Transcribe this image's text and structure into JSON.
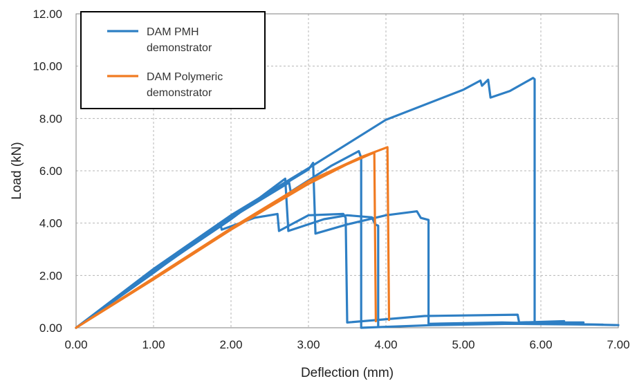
{
  "chart_data": {
    "type": "line",
    "title": "",
    "xlabel": "Deflection (mm)",
    "ylabel": "Load (kN)",
    "xlim": [
      0,
      7
    ],
    "ylim": [
      0,
      12
    ],
    "x_ticks": [
      "0.00",
      "1.00",
      "2.00",
      "3.00",
      "4.00",
      "5.00",
      "6.00",
      "7.00"
    ],
    "y_ticks": [
      "0.00",
      "2.00",
      "4.00",
      "6.00",
      "8.00",
      "10.00",
      "12.00"
    ],
    "grid": true,
    "legend_position": "top-left",
    "colors": {
      "pmh": "#2e7fc4",
      "polymeric": "#f07b22"
    },
    "legend": [
      {
        "lines": [
          "DAM PMH",
          "demonstrator"
        ],
        "color": "#2e7fc4"
      },
      {
        "lines": [
          "DAM Polymeric",
          "demonstrator"
        ],
        "color": "#f07b22"
      }
    ],
    "series": [
      {
        "group": "pmh",
        "color": "#2e7fc4",
        "points": [
          [
            0,
            0
          ],
          [
            1,
            2.25
          ],
          [
            2,
            4.3
          ],
          [
            3,
            6.1
          ],
          [
            4,
            7.95
          ],
          [
            5,
            9.1
          ],
          [
            5.22,
            9.45
          ],
          [
            5.24,
            9.25
          ],
          [
            5.32,
            9.48
          ],
          [
            5.35,
            8.8
          ],
          [
            5.6,
            9.05
          ],
          [
            5.9,
            9.55
          ],
          [
            5.92,
            9.5
          ],
          [
            5.92,
            0.2
          ],
          [
            6.55,
            0.2
          ]
        ]
      },
      {
        "group": "pmh",
        "color": "#2e7fc4",
        "points": [
          [
            0,
            0
          ],
          [
            1,
            2.2
          ],
          [
            2,
            4.25
          ],
          [
            3,
            6.05
          ],
          [
            3.06,
            6.3
          ],
          [
            3.09,
            3.6
          ],
          [
            3.5,
            3.95
          ],
          [
            4,
            4.3
          ],
          [
            4.4,
            4.45
          ],
          [
            4.45,
            4.2
          ],
          [
            4.55,
            4.12
          ],
          [
            4.55,
            0.15
          ],
          [
            5.5,
            0.2
          ],
          [
            7,
            0.1
          ]
        ]
      },
      {
        "group": "pmh",
        "color": "#2e7fc4",
        "points": [
          [
            0,
            0
          ],
          [
            1,
            2.15
          ],
          [
            2,
            4.15
          ],
          [
            2.7,
            5.7
          ],
          [
            2.74,
            3.7
          ],
          [
            3.2,
            4.15
          ],
          [
            3.5,
            4.3
          ],
          [
            3.82,
            4.22
          ],
          [
            3.86,
            3.95
          ],
          [
            3.9,
            3.9
          ],
          [
            3.9,
            0.05
          ]
        ]
      },
      {
        "group": "pmh",
        "color": "#2e7fc4",
        "points": [
          [
            0,
            0
          ],
          [
            1,
            2.1
          ],
          [
            1.86,
            4.0
          ],
          [
            1.88,
            3.75
          ],
          [
            2.3,
            4.2
          ],
          [
            2.6,
            4.35
          ],
          [
            2.62,
            3.7
          ],
          [
            3.0,
            4.3
          ],
          [
            3.45,
            4.35
          ],
          [
            3.48,
            4.2
          ],
          [
            3.5,
            0.2
          ],
          [
            4.5,
            0.45
          ],
          [
            5.7,
            0.5
          ],
          [
            5.72,
            0.2
          ],
          [
            6.3,
            0.25
          ]
        ]
      },
      {
        "group": "pmh",
        "color": "#2e7fc4",
        "points": [
          [
            0,
            0
          ],
          [
            1,
            2.12
          ],
          [
            2,
            4.2
          ],
          [
            2.75,
            5.55
          ],
          [
            2.77,
            5.2
          ],
          [
            3.3,
            6.2
          ],
          [
            3.65,
            6.75
          ],
          [
            3.68,
            6.5
          ],
          [
            3.68,
            0
          ],
          [
            4.6,
            0.1
          ],
          [
            5.6,
            0.15
          ],
          [
            6.8,
            0.12
          ]
        ]
      },
      {
        "group": "polymeric",
        "color": "#f07b22",
        "points": [
          [
            0,
            0
          ],
          [
            1,
            1.85
          ],
          [
            2,
            3.75
          ],
          [
            3,
            5.5
          ],
          [
            3.5,
            6.25
          ],
          [
            3.85,
            6.7
          ],
          [
            3.87,
            0.25
          ]
        ]
      },
      {
        "group": "polymeric",
        "color": "#f07b22",
        "points": [
          [
            0,
            0
          ],
          [
            1,
            1.9
          ],
          [
            2,
            3.8
          ],
          [
            3,
            5.6
          ],
          [
            3.7,
            6.55
          ],
          [
            4.02,
            6.9
          ],
          [
            4.04,
            0.3
          ]
        ]
      }
    ]
  }
}
